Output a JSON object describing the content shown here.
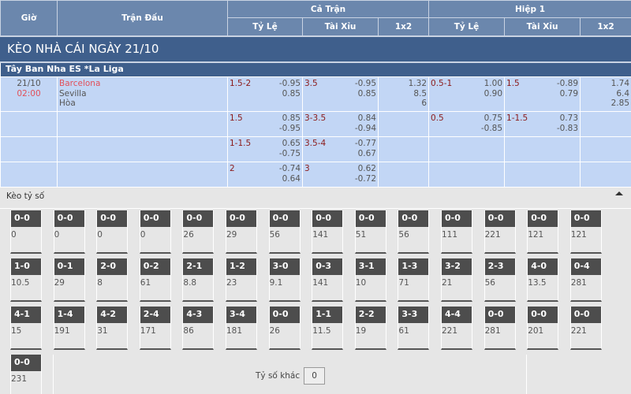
{
  "header": {
    "gio": "Giờ",
    "tran_dau": "Trận Đấu",
    "ca_tran": "Cả Trận",
    "hiep1": "Hiệp 1",
    "ty_le": "Tỷ Lệ",
    "tai_xiu": "Tài Xỉu",
    "x12": "1x2"
  },
  "title": "KÈO NHÀ CÁI NGÀY 21/10",
  "league": "Tây Ban Nha ES *La Liga",
  "match": {
    "date": "21/10",
    "time": "02:00",
    "home": "Barcelona",
    "away": "Sevilla",
    "draw": "Hòa"
  },
  "rows": [
    {
      "ft_hdp": "1.5-2",
      "ft_hdp_o": [
        "-0.95",
        "0.85"
      ],
      "ft_ou": "3.5",
      "ft_ou_o": [
        "-0.95",
        "0.85"
      ],
      "ft_1x2": [
        "1.32",
        "8.5",
        "6"
      ],
      "h1_hdp": "0.5-1",
      "h1_hdp_o": [
        "1.00",
        "0.90"
      ],
      "h1_ou": "1.5",
      "h1_ou_o": [
        "-0.89",
        "0.79"
      ],
      "h1_1x2": [
        "1.74",
        "6.4",
        "2.85"
      ]
    },
    {
      "ft_hdp": "1.5",
      "ft_hdp_o": [
        "0.85",
        "-0.95"
      ],
      "ft_ou": "3-3.5",
      "ft_ou_o": [
        "0.84",
        "-0.94"
      ],
      "h1_hdp": "0.5",
      "h1_hdp_o": [
        "0.75",
        "-0.85"
      ],
      "h1_ou": "1-1.5",
      "h1_ou_o": [
        "0.73",
        "-0.83"
      ]
    },
    {
      "ft_hdp": "1-1.5",
      "ft_hdp_o": [
        "0.65",
        "-0.75"
      ],
      "ft_ou": "3.5-4",
      "ft_ou_o": [
        "-0.77",
        "0.67"
      ]
    },
    {
      "ft_hdp": "2",
      "ft_hdp_o": [
        "-0.74",
        "0.64"
      ],
      "ft_ou": "3",
      "ft_ou_o": [
        "0.62",
        "-0.72"
      ]
    }
  ],
  "correct_score": {
    "title": "Kèo tỷ số",
    "other_label": "Tỷ số khác",
    "other_value": "0",
    "cards": [
      [
        "0-0",
        "0"
      ],
      [
        "0-0",
        "0"
      ],
      [
        "0-0",
        "0"
      ],
      [
        "0-0",
        "0"
      ],
      [
        "0-0",
        "26"
      ],
      [
        "0-0",
        "29"
      ],
      [
        "0-0",
        "56"
      ],
      [
        "0-0",
        "141"
      ],
      [
        "0-0",
        "51"
      ],
      [
        "0-0",
        "56"
      ],
      [
        "0-0",
        "111"
      ],
      [
        "0-0",
        "221"
      ],
      [
        "0-0",
        "121"
      ],
      [
        "0-0",
        "121"
      ],
      [
        "1-0",
        "10.5"
      ],
      [
        "0-1",
        "29"
      ],
      [
        "2-0",
        "8"
      ],
      [
        "0-2",
        "61"
      ],
      [
        "2-1",
        "8.8"
      ],
      [
        "1-2",
        "23"
      ],
      [
        "3-0",
        "9.1"
      ],
      [
        "0-3",
        "141"
      ],
      [
        "3-1",
        "10"
      ],
      [
        "1-3",
        "71"
      ],
      [
        "3-2",
        "21"
      ],
      [
        "2-3",
        "56"
      ],
      [
        "4-0",
        "13.5"
      ],
      [
        "0-4",
        "281"
      ],
      [
        "4-1",
        "15"
      ],
      [
        "1-4",
        "191"
      ],
      [
        "4-2",
        "31"
      ],
      [
        "2-4",
        "171"
      ],
      [
        "4-3",
        "86"
      ],
      [
        "3-4",
        "181"
      ],
      [
        "0-0",
        "26"
      ],
      [
        "1-1",
        "11.5"
      ],
      [
        "2-2",
        "19"
      ],
      [
        "3-3",
        "61"
      ],
      [
        "4-4",
        "221"
      ],
      [
        "0-0",
        "281"
      ],
      [
        "0-0",
        "201"
      ],
      [
        "0-0",
        "221"
      ],
      [
        "0-0",
        "231"
      ]
    ]
  }
}
